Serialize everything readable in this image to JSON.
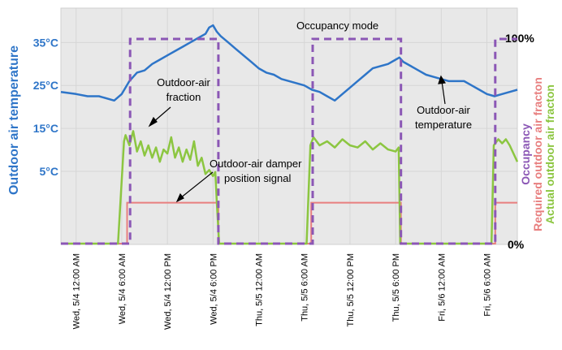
{
  "chart_data": {
    "type": "line",
    "ylabel_left": "Outdoor air temperature",
    "ylabel_right_1": "Occupancy",
    "ylabel_right_2": "Required outdoor air fracton",
    "ylabel_right_3": "Actual outdoor air fracton",
    "x_tick_labels": [
      "Wed, 5/4 12:00 AM",
      "Wed, 5/4 6:00 AM",
      "Wed, 5/4 12:00 PM",
      "Wed, 5/4 6:00 PM",
      "Thu, 5/5 12:00 AM",
      "Thu, 5/5 6:00 AM",
      "Thu, 5/5 12:00 PM",
      "Thu, 5/5 6:00 PM",
      "Fri, 5/6 12:00 AM",
      "Fri, 5/6 6:00 AM"
    ],
    "x_range_hours": [
      -2,
      58
    ],
    "y_left_ticks": [
      {
        "label": "35°C",
        "value": 35
      },
      {
        "label": "25°C",
        "value": 25
      },
      {
        "label": "15°C",
        "value": 15
      },
      {
        "label": "5°C",
        "value": 5
      }
    ],
    "y_left_range": [
      -12,
      43
    ],
    "y_right_ticks": [
      {
        "label": "100%",
        "value": 100
      },
      {
        "label": "0%",
        "value": 0
      }
    ],
    "annotations": {
      "occupancy_mode": "Occupancy mode",
      "oa_fraction_1": "Outdoor-air",
      "oa_fraction_2": "fraction",
      "oa_temp_1": "Outdoor-air",
      "oa_temp_2": "temperature",
      "damper_1": "Outdoor-air damper",
      "damper_2": "position signal"
    },
    "series": [
      {
        "name": "Outdoor-air temperature",
        "color": "#2e75c8",
        "unit": "°C",
        "points": [
          [
            -2,
            23.5
          ],
          [
            0,
            23
          ],
          [
            1.5,
            22.5
          ],
          [
            3,
            22.5
          ],
          [
            5,
            21.5
          ],
          [
            6,
            23
          ],
          [
            7,
            26
          ],
          [
            8,
            28
          ],
          [
            9,
            28.5
          ],
          [
            10,
            30
          ],
          [
            11,
            31
          ],
          [
            12,
            32
          ],
          [
            13,
            33
          ],
          [
            14,
            34
          ],
          [
            15,
            35
          ],
          [
            16,
            36
          ],
          [
            17,
            37
          ],
          [
            17.5,
            38.5
          ],
          [
            18,
            39
          ],
          [
            18.5,
            37.5
          ],
          [
            19,
            36.5
          ],
          [
            20,
            35
          ],
          [
            21,
            33.5
          ],
          [
            22,
            32
          ],
          [
            23,
            30.5
          ],
          [
            24,
            29
          ],
          [
            25,
            28
          ],
          [
            26,
            27.5
          ],
          [
            27,
            26.5
          ],
          [
            28,
            26
          ],
          [
            29,
            25.5
          ],
          [
            30,
            25
          ],
          [
            31,
            24
          ],
          [
            32,
            23.5
          ],
          [
            33,
            22.5
          ],
          [
            34,
            21.5
          ],
          [
            35,
            23
          ],
          [
            36,
            24.5
          ],
          [
            37,
            26
          ],
          [
            38,
            27.5
          ],
          [
            39,
            29
          ],
          [
            40,
            29.5
          ],
          [
            41,
            30
          ],
          [
            42,
            31
          ],
          [
            42.5,
            31.5
          ],
          [
            43,
            30.5
          ],
          [
            44,
            29.5
          ],
          [
            45,
            28.5
          ],
          [
            46,
            27.5
          ],
          [
            47,
            27
          ],
          [
            48,
            26.5
          ],
          [
            49,
            26
          ],
          [
            50,
            26
          ],
          [
            51,
            26
          ],
          [
            52,
            25
          ],
          [
            53,
            24
          ],
          [
            54,
            23
          ],
          [
            55,
            22.5
          ],
          [
            56,
            23
          ],
          [
            57,
            23.5
          ],
          [
            58,
            24
          ]
        ]
      },
      {
        "name": "Occupancy",
        "color": "#8b57b5",
        "unit": "%",
        "points": [
          [
            -2,
            0
          ],
          [
            7.1,
            0
          ],
          [
            7.1,
            100
          ],
          [
            18.7,
            100
          ],
          [
            18.7,
            0
          ],
          [
            31.1,
            0
          ],
          [
            31.1,
            100
          ],
          [
            42.7,
            100
          ],
          [
            42.7,
            0
          ],
          [
            55.1,
            0
          ],
          [
            55.1,
            100
          ],
          [
            58,
            100
          ]
        ]
      },
      {
        "name": "Required outdoor air fraction",
        "color": "#e87f7f",
        "unit": "%",
        "points": [
          [
            -2,
            0
          ],
          [
            6.7,
            0
          ],
          [
            6.7,
            20
          ],
          [
            18.7,
            20
          ],
          [
            18.7,
            0
          ],
          [
            30.9,
            0
          ],
          [
            30.9,
            20
          ],
          [
            42.7,
            20
          ],
          [
            42.7,
            0
          ],
          [
            55.1,
            0
          ],
          [
            55.1,
            20
          ],
          [
            58,
            20
          ]
        ]
      },
      {
        "name": "Actual outdoor air fraction",
        "color": "#8cc641",
        "unit": "%",
        "points": [
          [
            -2,
            0
          ],
          [
            5.5,
            0
          ],
          [
            6.3,
            50
          ],
          [
            6.5,
            53
          ],
          [
            7,
            48
          ],
          [
            7.5,
            55
          ],
          [
            8,
            45
          ],
          [
            8.5,
            50
          ],
          [
            9,
            43
          ],
          [
            9.5,
            48
          ],
          [
            10,
            42
          ],
          [
            10.5,
            47
          ],
          [
            11,
            40
          ],
          [
            11.5,
            46
          ],
          [
            12,
            44
          ],
          [
            12.5,
            52
          ],
          [
            13,
            42
          ],
          [
            13.5,
            47
          ],
          [
            14,
            40
          ],
          [
            14.5,
            46
          ],
          [
            15,
            41
          ],
          [
            15.5,
            50
          ],
          [
            16,
            38
          ],
          [
            16.5,
            42
          ],
          [
            17,
            34
          ],
          [
            17.5,
            36
          ],
          [
            18,
            33
          ],
          [
            18.3,
            35
          ],
          [
            18.5,
            20
          ],
          [
            18.8,
            0
          ],
          [
            30.3,
            0
          ],
          [
            30.8,
            48
          ],
          [
            31.2,
            52
          ],
          [
            32,
            48
          ],
          [
            33,
            50
          ],
          [
            34,
            47
          ],
          [
            35,
            51
          ],
          [
            36,
            48
          ],
          [
            37,
            47
          ],
          [
            38,
            50
          ],
          [
            39,
            46
          ],
          [
            40,
            49
          ],
          [
            41,
            46
          ],
          [
            42,
            45
          ],
          [
            42.4,
            47
          ],
          [
            42.6,
            0
          ],
          [
            54.6,
            0
          ],
          [
            54.9,
            48
          ],
          [
            55.5,
            51
          ],
          [
            56,
            49
          ],
          [
            56.5,
            51
          ],
          [
            57,
            48
          ],
          [
            57.5,
            44
          ],
          [
            58,
            40
          ]
        ]
      }
    ]
  }
}
